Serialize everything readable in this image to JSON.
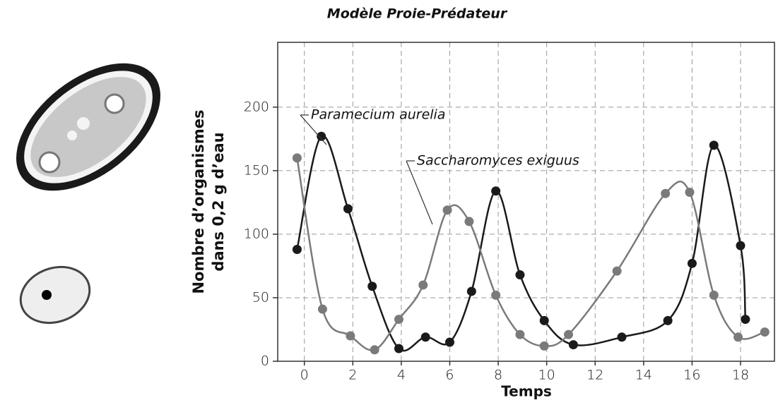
{
  "chart_data": {
    "type": "scatter",
    "title": "Modèle Proie-Prédateur",
    "xlabel": "Temps",
    "ylabel": [
      "Nombre d’organismes",
      "dans 0,2 g d’eau"
    ],
    "xlim": [
      -1.1,
      19.4
    ],
    "ylim": [
      0,
      251
    ],
    "xticks": [
      0,
      2,
      4,
      6,
      8,
      10,
      12,
      14,
      16,
      18
    ],
    "yticks": [
      0,
      50,
      100,
      150,
      200
    ],
    "grid": true,
    "series": [
      {
        "name": "Paramecium aurelia",
        "color": "#1a1a1a",
        "x": [
          -0.3,
          0.7,
          1.8,
          2.8,
          3.9,
          5.0,
          6.0,
          6.9,
          7.9,
          8.9,
          9.9,
          11.1,
          13.1,
          15.0,
          16.0,
          16.9,
          18.0,
          18.2
        ],
        "values": [
          88,
          177,
          120,
          59,
          10,
          19,
          15,
          55,
          134,
          68,
          32,
          13,
          19,
          32,
          77,
          170,
          91,
          33
        ]
      },
      {
        "name": "Saccharomyces exiguus",
        "color": "#7a7a7a",
        "x": [
          -0.3,
          0.75,
          1.9,
          2.9,
          3.9,
          4.9,
          5.9,
          6.8,
          7.9,
          8.9,
          9.9,
          10.9,
          12.9,
          14.9,
          15.9,
          16.9,
          17.9,
          19.0
        ],
        "values": [
          160,
          41,
          20,
          9,
          33,
          60,
          119,
          110,
          52,
          21,
          12,
          21,
          71,
          132,
          133,
          52,
          19,
          23
        ]
      }
    ]
  }
}
